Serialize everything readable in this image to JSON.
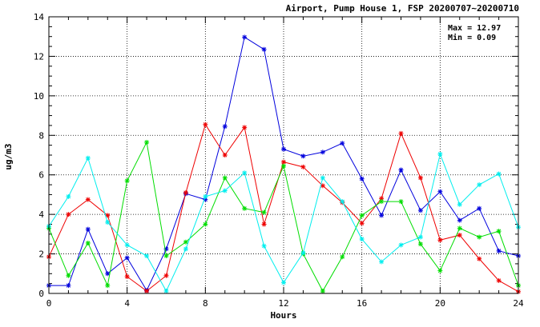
{
  "chart_data": {
    "type": "line",
    "title": "Airport, Pump House 1, FSP 20200707~20200710",
    "xlabel": "Hours",
    "ylabel": "ug/m3",
    "xlim": [
      0,
      24
    ],
    "ylim": [
      0,
      14
    ],
    "x_ticks": [
      "0",
      "4",
      "8",
      "12",
      "16",
      "20",
      "24"
    ],
    "y_ticks": [
      "0",
      "2",
      "4",
      "6",
      "8",
      "10",
      "12",
      "14"
    ],
    "grid": "dashed",
    "annotations": [
      "Max = 12.97",
      "Min =  0.09"
    ],
    "x": [
      0,
      1,
      2,
      3,
      4,
      5,
      6,
      7,
      8,
      9,
      10,
      11,
      12,
      13,
      14,
      15,
      16,
      17,
      18,
      19,
      20,
      21,
      22,
      23,
      24
    ],
    "series": [
      {
        "color": "#0000dd",
        "values": [
          0.4,
          0.4,
          3.25,
          1.0,
          1.8,
          0.15,
          2.25,
          5.05,
          4.75,
          8.45,
          12.97,
          12.35,
          7.3,
          6.95,
          7.15,
          7.6,
          5.8,
          3.95,
          6.25,
          4.2,
          5.15,
          3.7,
          4.3,
          2.15,
          1.9
        ]
      },
      {
        "color": "#ee0000",
        "values": [
          1.85,
          4.0,
          4.75,
          3.95,
          0.85,
          0.12,
          0.9,
          5.1,
          8.55,
          7.0,
          8.4,
          3.5,
          6.65,
          6.4,
          5.45,
          4.6,
          3.55,
          4.8,
          8.1,
          5.85,
          2.7,
          2.95,
          1.75,
          0.65,
          0.09
        ]
      },
      {
        "color": "#00dd00",
        "values": [
          3.3,
          0.9,
          2.55,
          0.4,
          5.7,
          7.65,
          1.9,
          2.6,
          3.5,
          5.85,
          4.3,
          4.1,
          6.45,
          2.0,
          0.12,
          1.85,
          3.95,
          4.65,
          4.65,
          2.5,
          1.15,
          3.3,
          2.85,
          3.15,
          0.4
        ]
      },
      {
        "color": "#00eeee",
        "values": [
          3.4,
          4.9,
          6.85,
          3.6,
          2.45,
          1.9,
          0.12,
          2.25,
          4.9,
          5.2,
          6.1,
          2.4,
          0.55,
          2.05,
          5.85,
          4.65,
          2.75,
          1.6,
          2.45,
          2.85,
          7.05,
          4.5,
          5.5,
          6.05,
          3.35
        ]
      }
    ]
  }
}
